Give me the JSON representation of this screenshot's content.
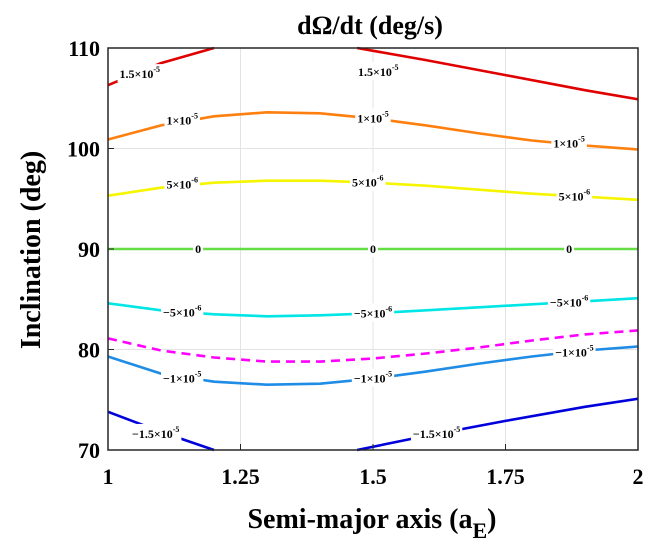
{
  "chart_data": {
    "type": "contour",
    "title": "dΩ/dt (deg/s)",
    "xlabel": "Semi-major axis (a",
    "xlabel_sub": "E",
    "xlabel_close": ")",
    "ylabel": "Inclination (deg)",
    "xlim": [
      1,
      2
    ],
    "ylim": [
      70,
      110
    ],
    "xticks": [
      1,
      1.25,
      1.5,
      1.75,
      2
    ],
    "xtick_labels": [
      "1",
      "1.25",
      "1.5",
      "1.75",
      "2"
    ],
    "yticks": [
      70,
      80,
      90,
      100,
      110
    ],
    "ytick_labels": [
      "70",
      "80",
      "90",
      "100",
      "110"
    ],
    "grid": true,
    "contours": [
      {
        "level": 1.5e-05,
        "color": "#e00000",
        "style": "solid",
        "points": [
          [
            1,
            106.3
          ],
          [
            1.1,
            108.5
          ],
          [
            1.2,
            110.0
          ]
        ],
        "points2": [
          [
            1.47,
            110.0
          ],
          [
            1.6,
            108.8
          ],
          [
            1.75,
            107.3
          ],
          [
            1.9,
            105.8
          ],
          [
            2,
            104.9
          ]
        ],
        "labels": [
          {
            "text": "1.5×10",
            "exp": "-5",
            "x": 1.06,
            "y": 107.4
          },
          {
            "text": "1.5×10",
            "exp": "-5",
            "x": 1.51,
            "y": 107.6
          }
        ]
      },
      {
        "level": 1e-05,
        "color": "#ff7f0e",
        "style": "solid",
        "points": [
          [
            1,
            100.9
          ],
          [
            1.1,
            102.3
          ],
          [
            1.2,
            103.2
          ],
          [
            1.3,
            103.6
          ],
          [
            1.4,
            103.5
          ],
          [
            1.5,
            103.0
          ],
          [
            1.6,
            102.3
          ],
          [
            1.7,
            101.5
          ],
          [
            1.8,
            100.8
          ],
          [
            1.9,
            100.3
          ],
          [
            2,
            99.9
          ]
        ],
        "labels": [
          {
            "text": "1×10",
            "exp": "-5",
            "x": 1.14,
            "y": 102.8
          },
          {
            "text": "1×10",
            "exp": "-5",
            "x": 1.5,
            "y": 103.0
          },
          {
            "text": "1×10",
            "exp": "-5",
            "x": 1.87,
            "y": 100.5
          }
        ]
      },
      {
        "level": 5e-06,
        "color": "#f5f500",
        "style": "solid",
        "points": [
          [
            1,
            95.3
          ],
          [
            1.1,
            96.1
          ],
          [
            1.2,
            96.6
          ],
          [
            1.3,
            96.8
          ],
          [
            1.4,
            96.8
          ],
          [
            1.5,
            96.6
          ],
          [
            1.6,
            96.3
          ],
          [
            1.7,
            95.9
          ],
          [
            1.8,
            95.5
          ],
          [
            1.9,
            95.2
          ],
          [
            2,
            94.9
          ]
        ],
        "labels": [
          {
            "text": "5×10",
            "exp": "-6",
            "x": 1.14,
            "y": 96.4
          },
          {
            "text": "5×10",
            "exp": "-6",
            "x": 1.49,
            "y": 96.6
          },
          {
            "text": "5×10",
            "exp": "-6",
            "x": 1.88,
            "y": 95.2
          }
        ]
      },
      {
        "level": 0,
        "color": "#66dd44",
        "style": "solid",
        "points": [
          [
            1,
            90
          ],
          [
            2,
            90
          ]
        ],
        "labels": [
          {
            "text": "0",
            "exp": "",
            "x": 1.17,
            "y": 90
          },
          {
            "text": "0",
            "exp": "",
            "x": 1.5,
            "y": 90
          },
          {
            "text": "0",
            "exp": "",
            "x": 1.87,
            "y": 90
          }
        ]
      },
      {
        "level": -5e-06,
        "color": "#00e5e5",
        "style": "solid",
        "points": [
          [
            1,
            84.6
          ],
          [
            1.1,
            83.9
          ],
          [
            1.2,
            83.5
          ],
          [
            1.3,
            83.3
          ],
          [
            1.4,
            83.4
          ],
          [
            1.5,
            83.6
          ],
          [
            1.6,
            83.9
          ],
          [
            1.7,
            84.2
          ],
          [
            1.8,
            84.5
          ],
          [
            1.9,
            84.8
          ],
          [
            2,
            85.1
          ]
        ],
        "labels": [
          {
            "text": "−5×10",
            "exp": "-6",
            "x": 1.14,
            "y": 83.7
          },
          {
            "text": "−5×10",
            "exp": "-6",
            "x": 1.5,
            "y": 83.6
          },
          {
            "text": "−5×10",
            "exp": "-6",
            "x": 1.87,
            "y": 84.7
          }
        ]
      },
      {
        "level": null,
        "color": "#ff00ff",
        "style": "dashed",
        "points": [
          [
            1,
            81.1
          ],
          [
            1.1,
            79.9
          ],
          [
            1.2,
            79.2
          ],
          [
            1.3,
            78.8
          ],
          [
            1.4,
            78.8
          ],
          [
            1.5,
            79.1
          ],
          [
            1.6,
            79.6
          ],
          [
            1.7,
            80.2
          ],
          [
            1.8,
            80.9
          ],
          [
            1.9,
            81.5
          ],
          [
            2,
            81.9
          ]
        ],
        "labels": []
      },
      {
        "level": -1e-05,
        "color": "#1f8ce6",
        "style": "solid",
        "points": [
          [
            1,
            79.3
          ],
          [
            1.1,
            77.6
          ],
          [
            1.2,
            76.8
          ],
          [
            1.3,
            76.5
          ],
          [
            1.4,
            76.6
          ],
          [
            1.5,
            77.1
          ],
          [
            1.6,
            77.8
          ],
          [
            1.7,
            78.6
          ],
          [
            1.8,
            79.3
          ],
          [
            1.9,
            79.9
          ],
          [
            2,
            80.3
          ]
        ],
        "labels": [
          {
            "text": "−1×10",
            "exp": "-5",
            "x": 1.14,
            "y": 77.1
          },
          {
            "text": "−1×10",
            "exp": "-5",
            "x": 1.5,
            "y": 77.1
          },
          {
            "text": "−1×10",
            "exp": "-5",
            "x": 1.88,
            "y": 79.7
          }
        ]
      },
      {
        "level": -1.5e-05,
        "color": "#0000dd",
        "style": "solid",
        "points": [
          [
            1,
            73.8
          ],
          [
            1.1,
            71.8
          ],
          [
            1.2,
            70.0
          ]
        ],
        "points2": [
          [
            1.47,
            70.0
          ],
          [
            1.6,
            71.4
          ],
          [
            1.75,
            72.9
          ],
          [
            1.9,
            74.3
          ],
          [
            2,
            75.1
          ]
        ],
        "labels": [
          {
            "text": "−1.5×10",
            "exp": "-5",
            "x": 1.09,
            "y": 71.6
          },
          {
            "text": "−1.5×10",
            "exp": "-5",
            "x": 1.62,
            "y": 71.6
          }
        ]
      }
    ]
  }
}
